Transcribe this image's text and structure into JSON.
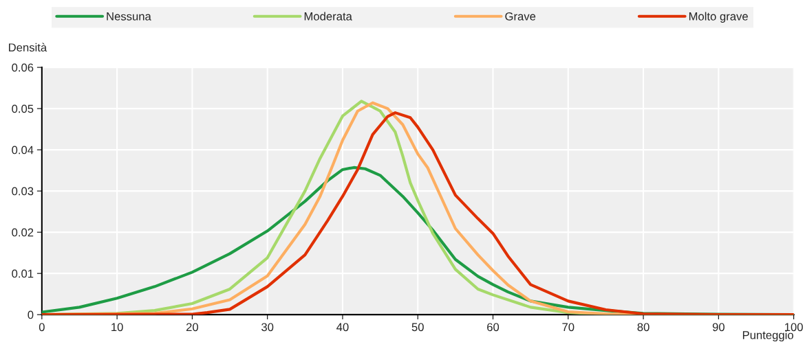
{
  "chart_data": {
    "type": "line",
    "xlabel": "Punteggio",
    "ylabel": "Densità",
    "xlim": [
      0,
      100
    ],
    "ylim": [
      0,
      0.06
    ],
    "xticks": [
      0,
      10,
      20,
      30,
      40,
      50,
      60,
      70,
      80,
      90,
      100
    ],
    "yticks": [
      0,
      0.01,
      0.02,
      0.03,
      0.04,
      0.05,
      0.06
    ],
    "grid": true,
    "legend": "top",
    "marker": "none",
    "line_style": "solid",
    "series": [
      {
        "name": "Nessuna",
        "color": "#1e9c45",
        "x": [
          0,
          5,
          10,
          15,
          20,
          25,
          30,
          35,
          38,
          40,
          41.5,
          43,
          45,
          48,
          50,
          52,
          55,
          58,
          60,
          62,
          65,
          70,
          75,
          80,
          90,
          100
        ],
        "values": [
          0.0006,
          0.0018,
          0.004,
          0.0068,
          0.0103,
          0.0148,
          0.0203,
          0.0275,
          0.0325,
          0.0352,
          0.0357,
          0.0354,
          0.0338,
          0.0287,
          0.0247,
          0.0205,
          0.0134,
          0.0093,
          0.0073,
          0.0055,
          0.0033,
          0.0018,
          0.001,
          0.0003,
          0.0001,
          0
        ]
      },
      {
        "name": "Moderata",
        "color": "#a6d96a",
        "x": [
          0,
          10,
          15,
          20,
          25,
          30,
          33,
          35,
          37,
          40,
          42.5,
          45,
          47,
          48,
          49,
          50,
          52,
          55,
          58,
          60,
          65,
          70,
          75,
          80,
          90,
          100
        ],
        "values": [
          0,
          0.0003,
          0.001,
          0.0027,
          0.0062,
          0.0138,
          0.0235,
          0.03,
          0.0379,
          0.0482,
          0.0518,
          0.0494,
          0.0443,
          0.0385,
          0.032,
          0.0277,
          0.0197,
          0.011,
          0.0062,
          0.0048,
          0.0018,
          0.0005,
          0.0001,
          0,
          0,
          0
        ]
      },
      {
        "name": "Grave",
        "color": "#fdae61",
        "x": [
          0,
          15,
          20,
          25,
          30,
          35,
          37,
          38.7,
          40,
          42,
          44,
          46,
          48,
          50,
          51.3,
          55,
          58,
          60,
          62,
          65,
          70,
          75,
          80,
          90,
          100
        ],
        "values": [
          0,
          0.0003,
          0.0014,
          0.0036,
          0.0094,
          0.0219,
          0.0287,
          0.0363,
          0.0423,
          0.0494,
          0.0514,
          0.05,
          0.0461,
          0.039,
          0.0357,
          0.0209,
          0.0145,
          0.0107,
          0.0072,
          0.0033,
          0.0007,
          0.0002,
          0,
          0,
          0
        ]
      },
      {
        "name": "Molto grave",
        "color": "#e03000",
        "x": [
          0,
          20,
          22,
          25,
          30,
          35,
          38,
          40,
          42,
          44,
          46,
          47,
          49,
          50,
          52,
          55,
          58,
          60,
          62,
          65,
          70,
          75,
          80,
          90,
          100
        ],
        "values": [
          0,
          0.0001,
          0.0005,
          0.0013,
          0.0068,
          0.0145,
          0.0228,
          0.0287,
          0.0352,
          0.0437,
          0.0481,
          0.049,
          0.0478,
          0.0455,
          0.04,
          0.029,
          0.0233,
          0.0197,
          0.0142,
          0.0073,
          0.0033,
          0.0012,
          0.0002,
          0,
          0
        ]
      }
    ]
  }
}
